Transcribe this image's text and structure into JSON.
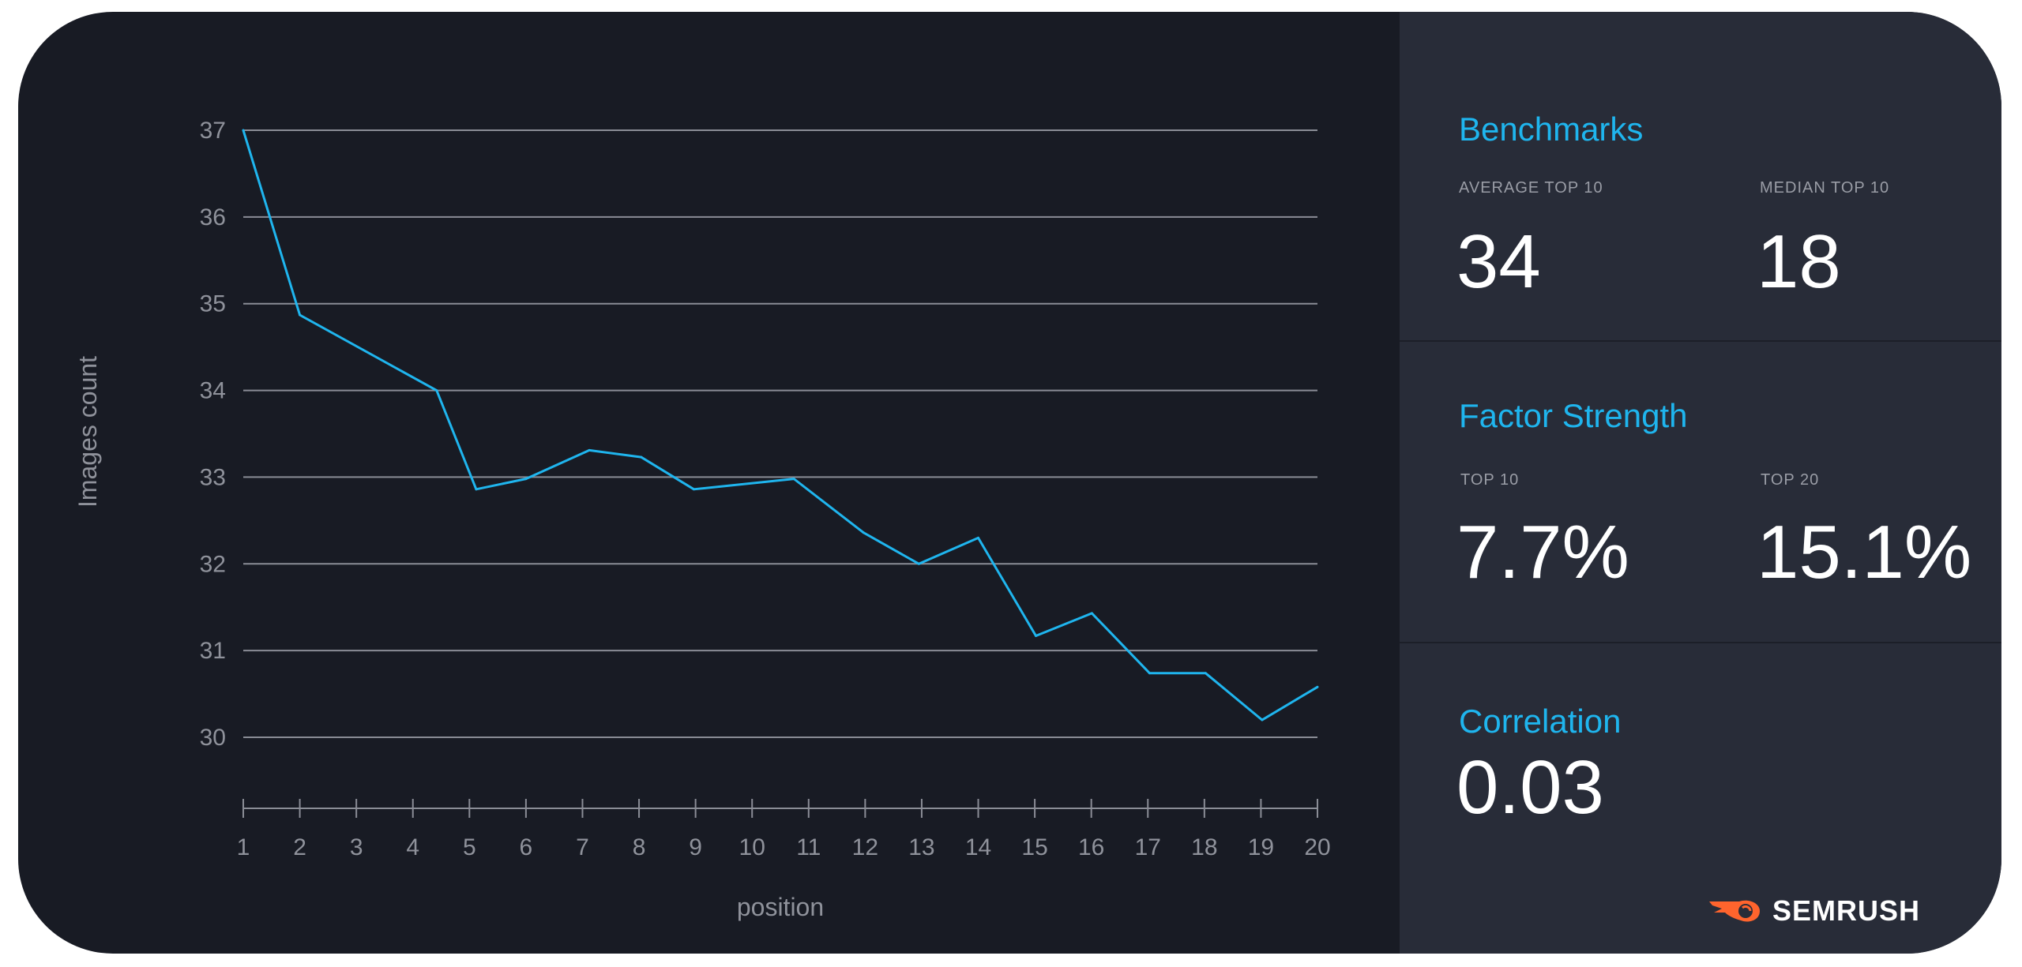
{
  "chart_data": {
    "type": "line",
    "xlabel": "position",
    "ylabel": "Images count",
    "ylim": [
      30,
      37
    ],
    "xlim": [
      1,
      20
    ],
    "yticks": [
      "30",
      "31",
      "32",
      "33",
      "34",
      "35",
      "36",
      "37"
    ],
    "xticks": [
      "1",
      "2",
      "3",
      "4",
      "5",
      "6",
      "7",
      "8",
      "9",
      "10",
      "11",
      "12",
      "13",
      "14",
      "15",
      "16",
      "17",
      "18",
      "19",
      "20"
    ],
    "grid": true,
    "color": "#1fb5ee",
    "points": [
      [
        1,
        37.0
      ],
      [
        2,
        34.87
      ],
      [
        4.42,
        34.0
      ],
      [
        5.12,
        32.86
      ],
      [
        6.0,
        32.98
      ],
      [
        7.12,
        33.31
      ],
      [
        8.04,
        33.23
      ],
      [
        8.97,
        32.86
      ],
      [
        10.74,
        32.98
      ],
      [
        11.97,
        32.36
      ],
      [
        12.95,
        32.0
      ],
      [
        14.0,
        32.3
      ],
      [
        15.02,
        31.17
      ],
      [
        16.01,
        31.43
      ],
      [
        17.03,
        30.74
      ],
      [
        18.02,
        30.74
      ],
      [
        19.02,
        30.2
      ],
      [
        20,
        30.58
      ]
    ]
  },
  "panel": {
    "benchmarks": {
      "title": "Benchmarks",
      "avg_label": "AVERAGE TOP 10",
      "avg_value": "34",
      "median_label": "MEDIAN TOP 10",
      "median_value": "18"
    },
    "factor": {
      "title": "Factor Strength",
      "top10_label": "TOP 10",
      "top10_value": "7.7%",
      "top20_label": "TOP 20",
      "top20_value": "15.1%"
    },
    "correlation": {
      "title": "Correlation",
      "value": "0.03"
    },
    "brand": "SEMRUSH"
  }
}
